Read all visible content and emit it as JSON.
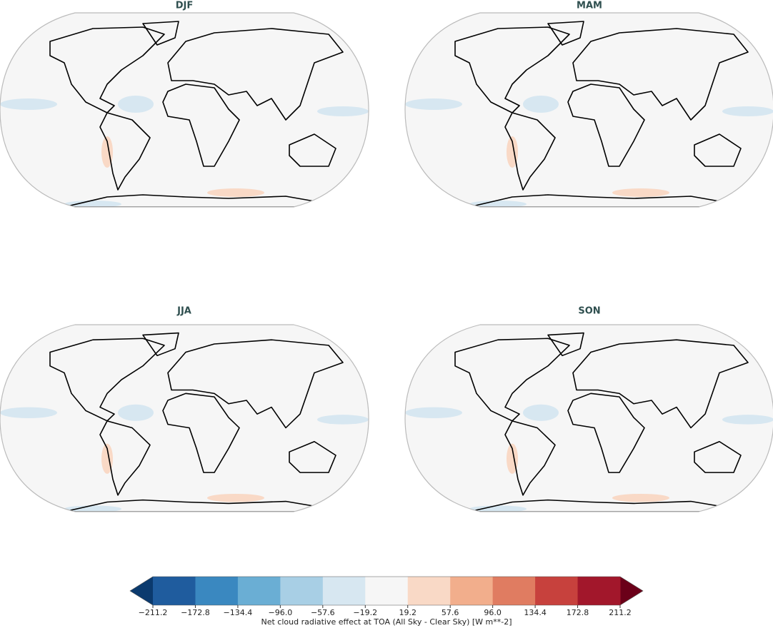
{
  "panels": [
    {
      "title": "DJF"
    },
    {
      "title": "MAM"
    },
    {
      "title": "JJA"
    },
    {
      "title": "SON"
    }
  ],
  "colorbar": {
    "label": "Net cloud radiative effect at TOA (All Sky - Clear Sky) [W m**-2]",
    "ticks": [
      {
        "value": -211.2,
        "label": "−211.2"
      },
      {
        "value": -172.8,
        "label": "−172.8"
      },
      {
        "value": -134.4,
        "label": "−134.4"
      },
      {
        "value": -96.0,
        "label": "−96.0"
      },
      {
        "value": -57.6,
        "label": "−57.6"
      },
      {
        "value": -19.2,
        "label": "−19.2"
      },
      19.2,
      57.6,
      {
        "value": 96.0,
        "label": "96.0"
      },
      134.4,
      172.8,
      211.2
    ],
    "colors": [
      "#1f5c9e",
      "#3a88c0",
      "#6aaed4",
      "#a8cfe5",
      "#d7e7f1",
      "#f6f6f6",
      "#f9d9c6",
      "#f2ae8c",
      "#e07c61",
      "#c7413d",
      "#a2172b"
    ],
    "under_color": "#0b3a6e",
    "over_color": "#6b0019"
  }
}
